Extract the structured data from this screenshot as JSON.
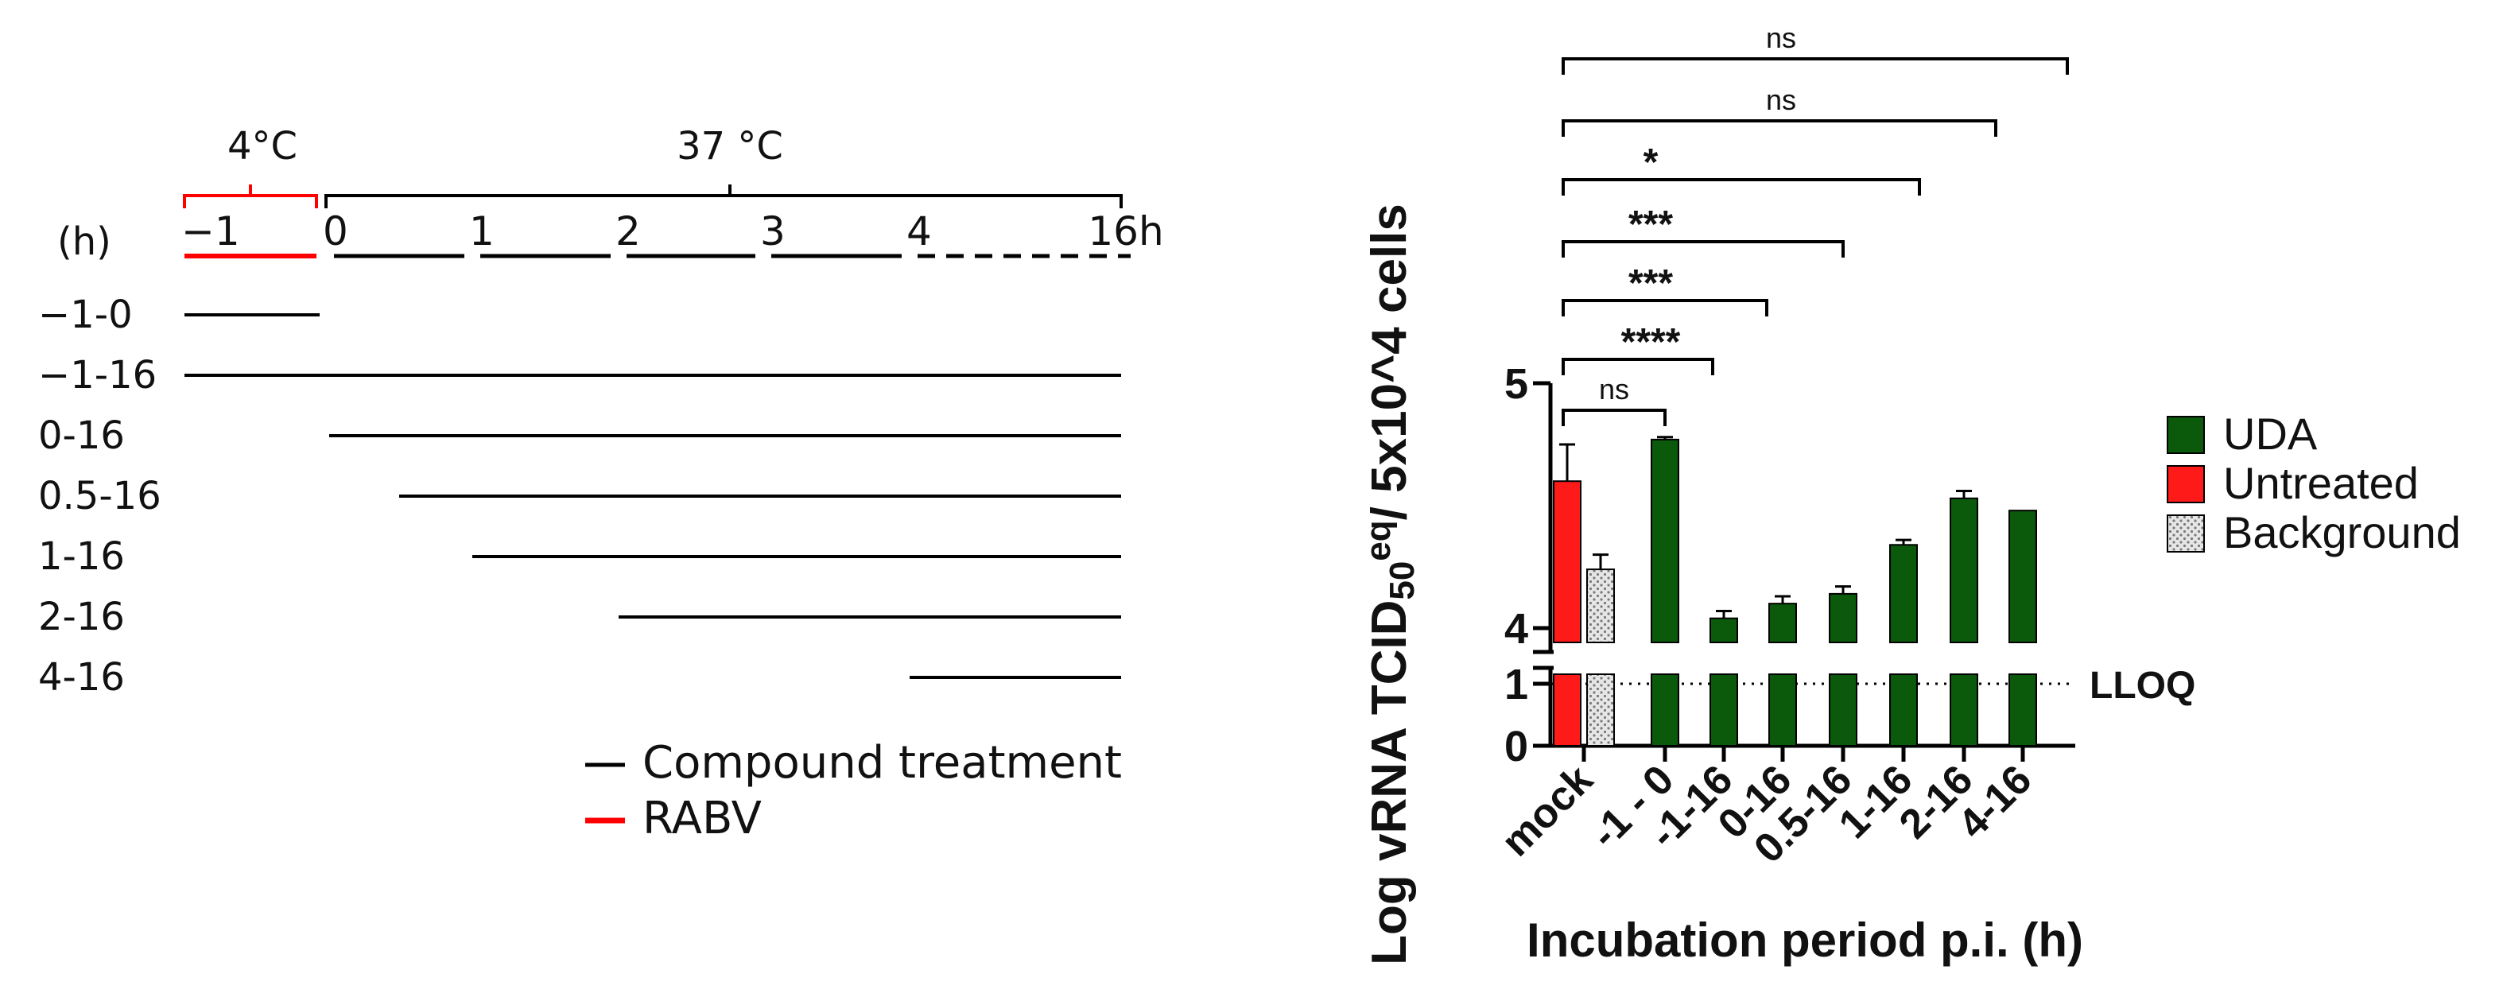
{
  "timeline": {
    "cold_label": "4°C",
    "warm_label": "37 °C",
    "unit_label": "(h)",
    "ticks": [
      {
        "label": "−1",
        "t": -1
      },
      {
        "label": "0",
        "t": 0
      },
      {
        "label": "1",
        "t": 1
      },
      {
        "label": "2",
        "t": 2
      },
      {
        "label": "3",
        "t": 3
      },
      {
        "label": "4",
        "t": 4
      },
      {
        "label": "16h",
        "t": 16
      }
    ],
    "rows": [
      {
        "label": "−1-0",
        "start": -1,
        "end": 0
      },
      {
        "label": "−1-16",
        "start": -1,
        "end": 16
      },
      {
        "label": "0-16",
        "start": 0,
        "end": 16
      },
      {
        "label": "0.5-16",
        "start": 0.5,
        "end": 16
      },
      {
        "label": "1-16",
        "start": 1,
        "end": 16
      },
      {
        "label": "2-16",
        "start": 2,
        "end": 16
      },
      {
        "label": "4-16",
        "start": 4,
        "end": 16
      }
    ],
    "legend": [
      {
        "label": "Compound treatment",
        "color": "#000000"
      },
      {
        "label": "RABV",
        "color": "#ff0000"
      }
    ]
  },
  "chart_data": {
    "type": "bar",
    "ylabel": "Log vRNA TCID",
    "ylabel_sub": "50",
    "ylabel_sup": "eq",
    "ylabel_tail": "/ 5x10^4 cells",
    "xlabel": "Incubation period p.i. (h)",
    "y_lower_range": [
      0,
      1
    ],
    "y_upper_range": [
      4,
      5
    ],
    "y_ticks": [
      {
        "label": "0",
        "value": 0
      },
      {
        "label": "1",
        "value": 1
      },
      {
        "label": "4",
        "value": 4
      },
      {
        "label": "5",
        "value": 5
      }
    ],
    "lloq": {
      "label": "LLOQ",
      "value": 1
    },
    "groups": [
      {
        "label": "mock",
        "bars": [
          {
            "series": "Untreated",
            "value": 4.6,
            "error": 0.15
          },
          {
            "series": "Background",
            "value": 4.24,
            "error": 0.06
          }
        ]
      },
      {
        "label": "-1 - 0",
        "bars": [
          {
            "series": "UDA",
            "value": 4.77,
            "error": 0.01
          }
        ]
      },
      {
        "label": "-1-16",
        "bars": [
          {
            "series": "UDA",
            "value": 4.04,
            "error": 0.03
          }
        ]
      },
      {
        "label": "0-16",
        "bars": [
          {
            "series": "UDA",
            "value": 4.1,
            "error": 0.03
          }
        ]
      },
      {
        "label": "0.5-16",
        "bars": [
          {
            "series": "UDA",
            "value": 4.14,
            "error": 0.03
          }
        ]
      },
      {
        "label": "1-16",
        "bars": [
          {
            "series": "UDA",
            "value": 4.34,
            "error": 0.02
          }
        ]
      },
      {
        "label": "2-16",
        "bars": [
          {
            "series": "UDA",
            "value": 4.53,
            "error": 0.03
          }
        ]
      },
      {
        "label": "4-16",
        "bars": [
          {
            "series": "UDA",
            "value": 4.48,
            "error": 0
          }
        ]
      }
    ],
    "series": [
      {
        "name": "UDA",
        "color": "#0b5a0b"
      },
      {
        "name": "Untreated",
        "color": "#ff1a1a"
      },
      {
        "name": "Background",
        "color": "#d9d9d9",
        "pattern": "dots"
      }
    ],
    "significance": [
      {
        "label": "ns",
        "from": 0,
        "to": 1
      },
      {
        "label": "****",
        "from": 0,
        "to": 2
      },
      {
        "label": "***",
        "from": 0,
        "to": 3
      },
      {
        "label": "***",
        "from": 0,
        "to": 4
      },
      {
        "label": "*",
        "from": 0,
        "to": 5
      },
      {
        "label": "ns",
        "from": 0,
        "to": 6
      },
      {
        "label": "ns",
        "from": 0,
        "to": 7
      }
    ]
  }
}
